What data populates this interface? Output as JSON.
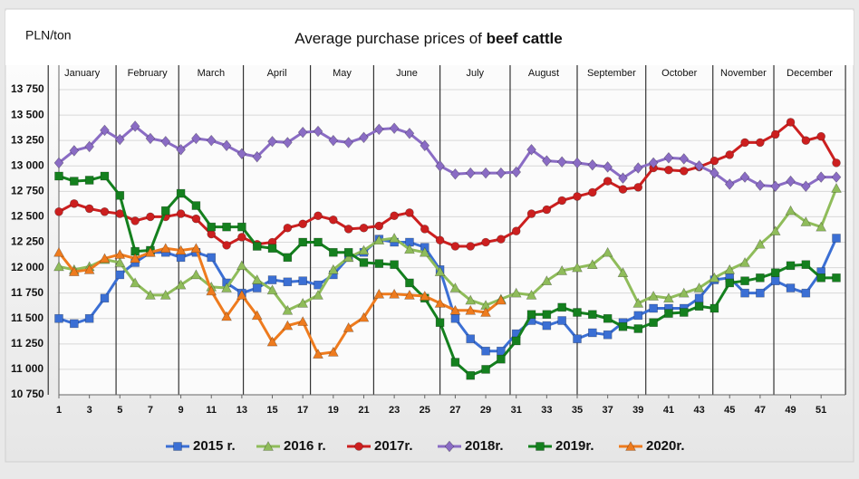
{
  "chart_data": {
    "type": "line",
    "y_label": "PLN/ton",
    "title": "Average purchase prices of",
    "title_bold": "beef cattle",
    "month_labels": [
      "January",
      "February",
      "March",
      "April",
      "May",
      "June",
      "July",
      "August",
      "September",
      "October",
      "November",
      "December"
    ],
    "x": [
      1,
      2,
      3,
      4,
      5,
      6,
      7,
      8,
      9,
      10,
      11,
      12,
      13,
      14,
      15,
      16,
      17,
      18,
      19,
      20,
      21,
      22,
      23,
      24,
      25,
      26,
      27,
      28,
      29,
      30,
      31,
      32,
      33,
      34,
      35,
      36,
      37,
      38,
      39,
      40,
      41,
      42,
      43,
      44,
      45,
      46,
      47,
      48,
      49,
      50,
      51,
      52
    ],
    "xlim": [
      1,
      52
    ],
    "xticks": [
      1,
      3,
      5,
      7,
      9,
      11,
      13,
      15,
      17,
      19,
      21,
      23,
      25,
      27,
      29,
      31,
      33,
      35,
      37,
      39,
      41,
      43,
      45,
      47,
      49,
      51
    ],
    "ylim": [
      10750,
      13750
    ],
    "yticks": [
      {
        "value": 10750,
        "label": "10 750"
      },
      {
        "value": 11000,
        "label": "11 000"
      },
      {
        "value": 11250,
        "label": "11 250"
      },
      {
        "value": 11500,
        "label": "11 500"
      },
      {
        "value": 11750,
        "label": "11 750"
      },
      {
        "value": 12000,
        "label": "12 000"
      },
      {
        "value": 12250,
        "label": "12 250"
      },
      {
        "value": 12500,
        "label": "12 500"
      },
      {
        "value": 12750,
        "label": "12 750"
      },
      {
        "value": 13000,
        "label": "13 000"
      },
      {
        "value": 13250,
        "label": "13 250"
      },
      {
        "value": 13500,
        "label": "13 500"
      },
      {
        "value": 13750,
        "label": "13 750"
      }
    ],
    "grid": true,
    "legend": "bottom",
    "series": [
      {
        "name": "2015 r.",
        "color": "#3b6fd4",
        "marker": "square",
        "values": [
          11500,
          11450,
          11500,
          11700,
          11930,
          12050,
          12150,
          12150,
          12100,
          12150,
          12100,
          11850,
          11750,
          11800,
          11880,
          11860,
          11870,
          11830,
          11930,
          12100,
          12150,
          12280,
          12250,
          12250,
          12200,
          11980,
          11500,
          11300,
          11180,
          11180,
          11350,
          11480,
          11430,
          11480,
          11300,
          11360,
          11340,
          11460,
          11530,
          11600,
          11600,
          11600,
          11700,
          11880,
          11900,
          11750,
          11750,
          11870,
          11800,
          11750,
          11960,
          12290
        ]
      },
      {
        "name": "2016 r.",
        "color": "#8fbc5a",
        "marker": "triangle",
        "values": [
          12010,
          11980,
          12010,
          12080,
          12050,
          11850,
          11730,
          11730,
          11830,
          11930,
          11810,
          11800,
          12020,
          11880,
          11780,
          11580,
          11650,
          11730,
          11980,
          12100,
          12170,
          12270,
          12290,
          12180,
          12150,
          11960,
          11800,
          11680,
          11630,
          11690,
          11750,
          11730,
          11870,
          11970,
          12000,
          12030,
          12150,
          11950,
          11650,
          11720,
          11700,
          11750,
          11800,
          11900,
          11980,
          12050,
          12230,
          12360,
          12560,
          12450,
          12400,
          12780
        ]
      },
      {
        "name": "2017r.",
        "color": "#cc1f1f",
        "marker": "circle",
        "values": [
          12550,
          12630,
          12580,
          12550,
          12530,
          12460,
          12500,
          12500,
          12530,
          12480,
          12330,
          12220,
          12300,
          12230,
          12250,
          12390,
          12430,
          12510,
          12470,
          12380,
          12390,
          12410,
          12510,
          12540,
          12380,
          12270,
          12210,
          12210,
          12250,
          12280,
          12360,
          12530,
          12570,
          12660,
          12700,
          12740,
          12850,
          12770,
          12790,
          12980,
          12960,
          12950,
          12990,
          13050,
          13110,
          13230,
          13230,
          13310,
          13430,
          13250,
          13290,
          13030
        ]
      },
      {
        "name": "2018r.",
        "color": "#8a6cc4",
        "marker": "diamond",
        "values": [
          13030,
          13150,
          13190,
          13350,
          13260,
          13390,
          13270,
          13240,
          13160,
          13270,
          13250,
          13200,
          13120,
          13090,
          13240,
          13230,
          13330,
          13340,
          13250,
          13230,
          13280,
          13360,
          13370,
          13320,
          13200,
          13000,
          12920,
          12930,
          12930,
          12930,
          12940,
          13160,
          13050,
          13040,
          13030,
          13010,
          12990,
          12880,
          12980,
          13030,
          13080,
          13070,
          13000,
          12930,
          12820,
          12890,
          12810,
          12800,
          12850,
          12800,
          12890,
          12890
        ]
      },
      {
        "name": "2019r.",
        "color": "#14801e",
        "marker": "square",
        "values": [
          12900,
          12850,
          12860,
          12900,
          12710,
          12160,
          12170,
          12560,
          12730,
          12610,
          12400,
          12400,
          12400,
          12210,
          12190,
          12100,
          12250,
          12250,
          12150,
          12150,
          12050,
          12040,
          12030,
          11850,
          11700,
          11460,
          11070,
          10940,
          11000,
          11100,
          11280,
          11540,
          11540,
          11610,
          11560,
          11540,
          11500,
          11420,
          11400,
          11460,
          11550,
          11560,
          11620,
          11600,
          11850,
          11870,
          11900,
          11950,
          12020,
          12030,
          11900,
          11900
        ]
      },
      {
        "name": "2020r.",
        "color": "#ee7b1e",
        "marker": "triangle",
        "values": [
          12150,
          11960,
          11980,
          12090,
          12130,
          12090,
          12150,
          12190,
          12170,
          12190,
          11770,
          11520,
          11730,
          11530,
          11270,
          11430,
          11470,
          11150,
          11170,
          11410,
          11510,
          11740,
          11740,
          11730,
          11720,
          11650,
          11580,
          11580,
          11560,
          11680,
          null,
          null,
          null,
          null,
          null,
          null,
          null,
          null,
          null,
          null,
          null,
          null,
          null,
          null,
          null,
          null,
          null,
          null,
          null,
          null,
          null,
          null
        ]
      }
    ]
  }
}
